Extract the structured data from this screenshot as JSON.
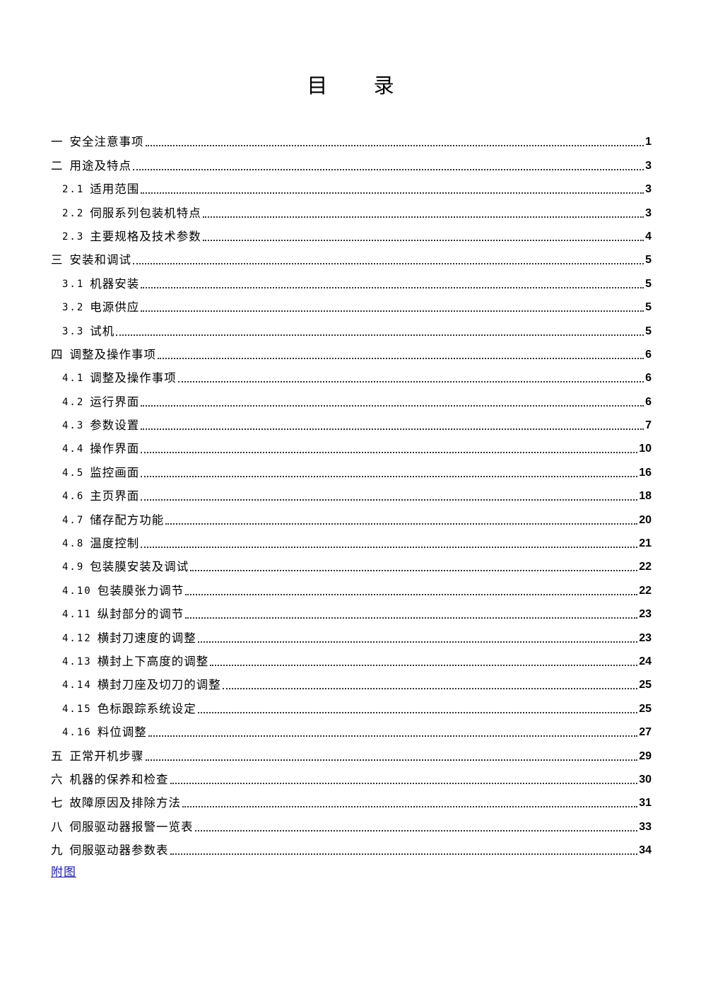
{
  "title": "目 录",
  "entries": [
    {
      "num": "一",
      "label": "安全注意事项",
      "page": "1",
      "level": 1
    },
    {
      "num": "二",
      "label": "用途及特点",
      "page": "3",
      "level": 1
    },
    {
      "num": "2.1",
      "label": "适用范围",
      "page": "3",
      "level": 2
    },
    {
      "num": "2.2",
      "label": "伺服系列包装机特点",
      "page": "3",
      "level": 2
    },
    {
      "num": "2.3",
      "label": "主要规格及技术参数",
      "page": "4",
      "level": 2
    },
    {
      "num": "三",
      "label": "安装和调试",
      "page": "5",
      "level": 1
    },
    {
      "num": "3.1",
      "label": "机器安装",
      "page": "5",
      "level": 2
    },
    {
      "num": "3.2",
      "label": "电源供应",
      "page": "5",
      "level": 2
    },
    {
      "num": "3.3",
      "label": "试机",
      "page": "5",
      "level": 2
    },
    {
      "num": "四",
      "label": "调整及操作事项",
      "page": "6",
      "level": 1
    },
    {
      "num": "4.1",
      "label": "调整及操作事项",
      "page": "6",
      "level": 2
    },
    {
      "num": "4.2",
      "label": "运行界面",
      "page": "6",
      "level": 2
    },
    {
      "num": "4.3",
      "label": "参数设置",
      "page": "7",
      "level": 2
    },
    {
      "num": "4.4",
      "label": "操作界面",
      "page": "10",
      "level": 2
    },
    {
      "num": "4.5",
      "label": "监控画面",
      "page": "16",
      "level": 2
    },
    {
      "num": "4.6",
      "label": "主页界面",
      "page": "18",
      "level": 2
    },
    {
      "num": "4.7",
      "label": "储存配方功能",
      "page": "20",
      "level": 2
    },
    {
      "num": "4.8",
      "label": "温度控制",
      "page": "21",
      "level": 2
    },
    {
      "num": "4.9",
      "label": "包装膜安装及调试",
      "page": "22",
      "level": 2
    },
    {
      "num": "4.10",
      "label": "包装膜张力调节",
      "page": "22",
      "level": 2
    },
    {
      "num": "4.11",
      "label": "纵封部分的调节",
      "page": "23",
      "level": 2
    },
    {
      "num": "4.12",
      "label": "横封刀速度的调整",
      "page": "23",
      "level": 2
    },
    {
      "num": "4.13",
      "label": "横封上下高度的调整",
      "page": "24",
      "level": 2
    },
    {
      "num": "4.14",
      "label": "横封刀座及切刀的调整",
      "page": "25",
      "level": 2
    },
    {
      "num": "4.15",
      "label": "色标跟踪系统设定",
      "page": "25",
      "level": 2
    },
    {
      "num": "4.16",
      "label": "料位调整",
      "page": "27",
      "level": 2
    },
    {
      "num": "五",
      "label": "正常开机步骤",
      "page": "29",
      "level": 1
    },
    {
      "num": "六",
      "label": "机器的保养和检查",
      "page": "30",
      "level": 1
    },
    {
      "num": "七",
      "label": "故障原因及排除方法",
      "page": "31",
      "level": 1
    },
    {
      "num": "八",
      "label": "伺服驱动器报警一览表",
      "page": "33",
      "level": 1
    },
    {
      "num": "九",
      "label": "伺服驱动器参数表",
      "page": "34",
      "level": 1
    }
  ],
  "appendix_link": "附图",
  "colors": {
    "link": "#1a1aa6",
    "text": "#000000"
  }
}
